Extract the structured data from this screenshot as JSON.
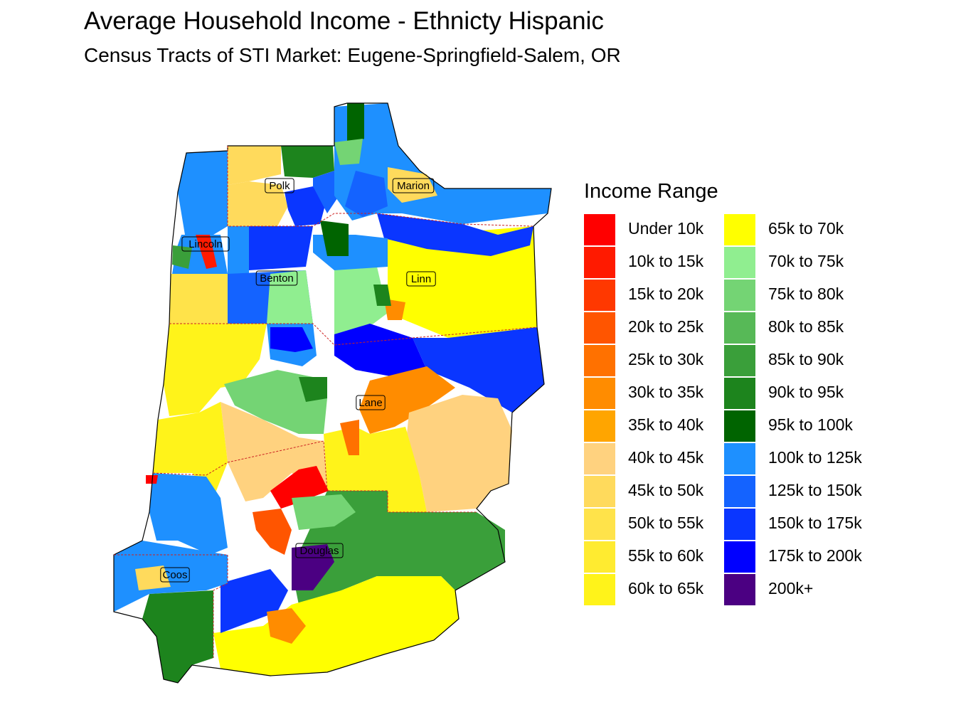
{
  "title": "Average Household Income - Ethnicty Hispanic",
  "subtitle": "Census Tracts of STI Market: Eugene-Springfield-Salem, OR",
  "legend": {
    "title": "Income Range",
    "items": [
      {
        "label": "Under 10k",
        "color": "#FF0000"
      },
      {
        "label": "10k to 15k",
        "color": "#FF1A00"
      },
      {
        "label": "15k to 20k",
        "color": "#FF3800"
      },
      {
        "label": "20k to 25k",
        "color": "#FF5500"
      },
      {
        "label": "25k to 30k",
        "color": "#FF7100"
      },
      {
        "label": "30k to 35k",
        "color": "#FF8C00"
      },
      {
        "label": "35k to 40k",
        "color": "#FFA500"
      },
      {
        "label": "40k to 45k",
        "color": "#FFD27F"
      },
      {
        "label": "45k to 50k",
        "color": "#FFDA5C"
      },
      {
        "label": "50k to 55k",
        "color": "#FFE34A"
      },
      {
        "label": "55k to 60k",
        "color": "#FFEB30"
      },
      {
        "label": "60k to 65k",
        "color": "#FFF31A"
      },
      {
        "label": "65k to 70k",
        "color": "#FFFF00"
      },
      {
        "label": "70k to 75k",
        "color": "#90EE90"
      },
      {
        "label": "75k to 80k",
        "color": "#74D474"
      },
      {
        "label": "80k to 85k",
        "color": "#57B957"
      },
      {
        "label": "85k to 90k",
        "color": "#3A9F3A"
      },
      {
        "label": "90k to 95k",
        "color": "#1D841D"
      },
      {
        "label": "95k to 100k",
        "color": "#006400"
      },
      {
        "label": "100k to 125k",
        "color": "#1E90FF"
      },
      {
        "label": "125k to 150k",
        "color": "#1463FF"
      },
      {
        "label": "150k to 175k",
        "color": "#0A36FF"
      },
      {
        "label": "175k to 200k",
        "color": "#0000FF"
      },
      {
        "label": "200k+",
        "color": "#4B0082"
      }
    ]
  },
  "counties": [
    {
      "name": "Polk"
    },
    {
      "name": "Marion"
    },
    {
      "name": "Lincoln"
    },
    {
      "name": "Benton"
    },
    {
      "name": "Linn"
    },
    {
      "name": "Lane"
    },
    {
      "name": "Douglas"
    },
    {
      "name": "Coos"
    }
  ]
}
